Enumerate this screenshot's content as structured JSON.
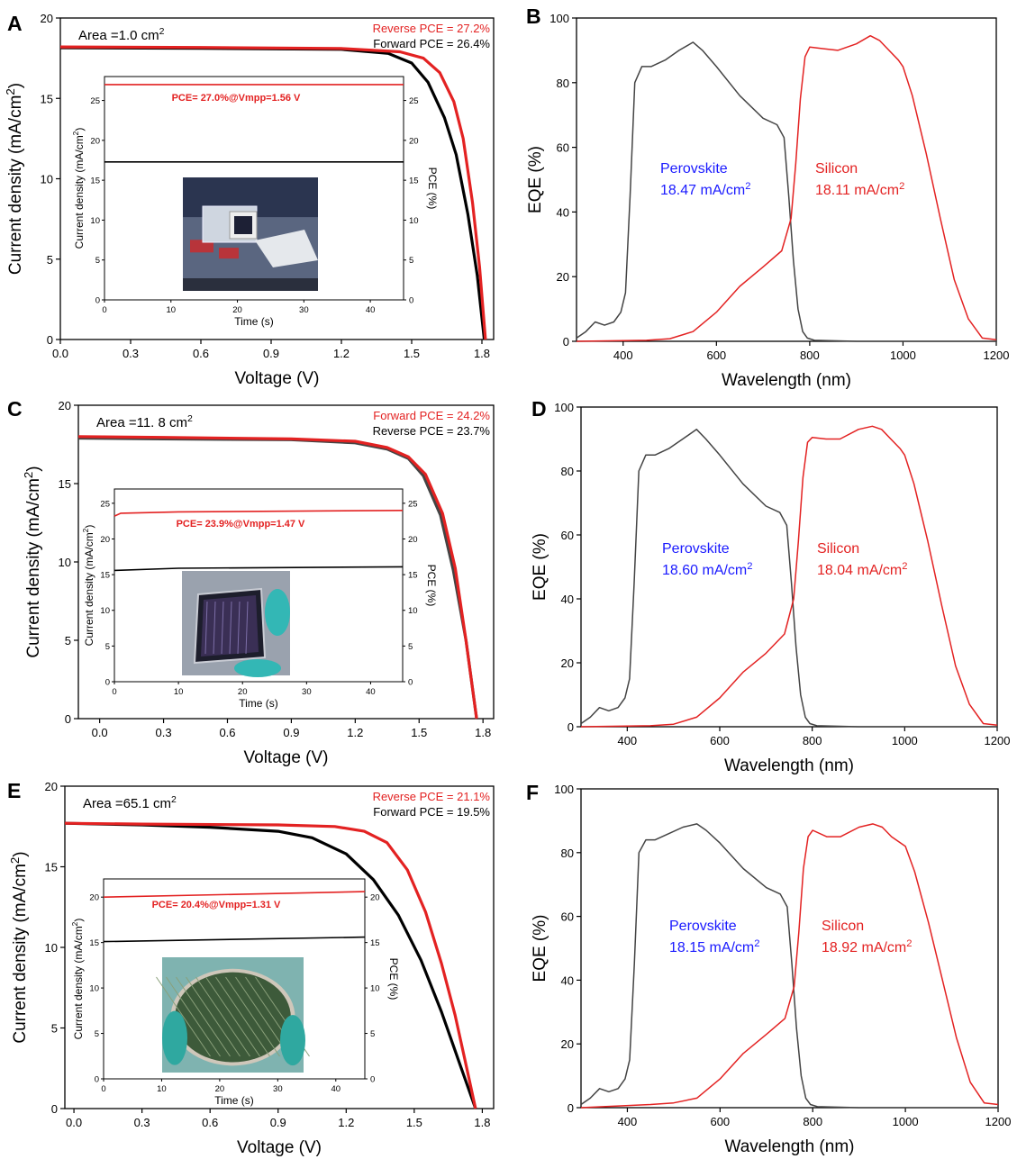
{
  "figure": {
    "colors": {
      "red": "#e32222",
      "black": "#000000",
      "gray": "#444444",
      "blue": "#1a1aff"
    }
  },
  "chart_data": [
    {
      "panel": "A",
      "type": "line",
      "xlabel": "Voltage (V)",
      "ylabel": "Current density (mA/cm2)",
      "xlim": [
        0.0,
        1.85
      ],
      "ylim": [
        0,
        20
      ],
      "xticks": [
        "0.0",
        "0.3",
        "0.6",
        "0.9",
        "1.2",
        "1.5",
        "1.8"
      ],
      "yticks": [
        "0",
        "5",
        "10",
        "15",
        "20"
      ],
      "area_label": "Area =1.0 cm",
      "area_sup": "2",
      "legend": [
        {
          "text": "Reverse PCE = 27.2%",
          "color": "#e32222"
        },
        {
          "text": "Forward PCE = 26.4%",
          "color": "#000000"
        }
      ],
      "series": [
        {
          "name": "Reverse PCE = 27.2%",
          "color": "#e32222",
          "x": [
            0.0,
            0.6,
            1.2,
            1.45,
            1.55,
            1.62,
            1.68,
            1.72,
            1.76,
            1.79,
            1.815
          ],
          "y": [
            18.2,
            18.17,
            18.1,
            17.9,
            17.5,
            16.6,
            14.8,
            12.5,
            8.5,
            4.5,
            0
          ]
        },
        {
          "name": "Forward PCE = 26.4%",
          "color": "#000000",
          "x": [
            0.0,
            0.6,
            1.2,
            1.4,
            1.5,
            1.57,
            1.64,
            1.69,
            1.74,
            1.78,
            1.81
          ],
          "y": [
            18.15,
            18.12,
            18.05,
            17.8,
            17.2,
            16.0,
            13.8,
            11.5,
            7.8,
            4.0,
            0
          ]
        }
      ],
      "inset": {
        "xlabel": "Time (s)",
        "ylabel": "Current density (mA/cm2)",
        "y2label": "PCE (%)",
        "xlim": [
          0,
          45
        ],
        "ylim": [
          0,
          28
        ],
        "xticks": [
          "0",
          "10",
          "20",
          "30",
          "40"
        ],
        "yticks": [
          "0",
          "5",
          "10",
          "15",
          "20",
          "25"
        ],
        "y2ticks": [
          "0",
          "5",
          "10",
          "15",
          "20",
          "25"
        ],
        "annotation": "PCE= 27.0%@Vmpp=1.56 V",
        "series": [
          {
            "name": "PCE",
            "color": "#e32222",
            "x": [
              0,
              45
            ],
            "y": [
              27.0,
              27.0
            ]
          },
          {
            "name": "Current density",
            "color": "#000000",
            "x": [
              0,
              45
            ],
            "y": [
              17.3,
              17.3
            ]
          }
        ]
      }
    },
    {
      "panel": "B",
      "type": "line",
      "xlabel": "Wavelength (nm)",
      "ylabel": "EQE (%)",
      "xlim": [
        300,
        1200
      ],
      "ylim": [
        0,
        100
      ],
      "xticks": [
        "400",
        "600",
        "800",
        "1000",
        "1200"
      ],
      "yticks": [
        "0",
        "20",
        "40",
        "60",
        "80",
        "100"
      ],
      "labels": [
        {
          "name": "Perovskite",
          "value": "18.47 mA/cm",
          "sup": "2",
          "color": "#1a1aff"
        },
        {
          "name": "Silicon",
          "value": "18.11 mA/cm",
          "sup": "2",
          "color": "#e32222"
        }
      ],
      "series": [
        {
          "name": "Perovskite",
          "color": "#444444",
          "x": [
            300,
            320,
            340,
            360,
            380,
            395,
            405,
            415,
            425,
            440,
            460,
            490,
            520,
            550,
            570,
            600,
            650,
            700,
            730,
            745,
            755,
            765,
            775,
            785,
            795,
            810,
            900,
            1200
          ],
          "y": [
            1,
            3,
            6,
            5,
            6,
            9,
            15,
            45,
            80,
            85,
            85,
            87,
            90,
            92.5,
            90,
            85,
            76,
            69,
            67,
            63,
            45,
            25,
            10,
            3,
            1,
            0.3,
            0,
            0
          ]
        },
        {
          "name": "Silicon",
          "color": "#e32222",
          "x": [
            300,
            450,
            500,
            550,
            600,
            650,
            700,
            740,
            760,
            770,
            780,
            790,
            800,
            830,
            860,
            900,
            930,
            950,
            970,
            990,
            1000,
            1020,
            1050,
            1080,
            1110,
            1140,
            1170,
            1200
          ],
          "y": [
            0,
            0.3,
            0.8,
            3,
            9,
            17,
            23,
            28,
            38,
            55,
            75,
            88,
            91,
            90.5,
            90,
            92,
            94.5,
            93,
            90,
            87,
            85,
            76,
            58,
            38,
            19,
            7,
            1,
            0.5
          ]
        }
      ]
    },
    {
      "panel": "C",
      "type": "line",
      "xlabel": "Voltage (V)",
      "ylabel": "Current density (mA/cm2)",
      "xlim": [
        -0.1,
        1.85
      ],
      "ylim": [
        0,
        20
      ],
      "xticks": [
        "0.0",
        "0.3",
        "0.6",
        "0.9",
        "1.2",
        "1.5",
        "1.8"
      ],
      "yticks": [
        "0",
        "5",
        "10",
        "15",
        "20"
      ],
      "area_label": "Area =11. 8 cm",
      "area_sup": "2",
      "legend": [
        {
          "text": "Forward PCE = 24.2%",
          "color": "#e32222"
        },
        {
          "text": "Reverse PCE = 23.7%",
          "color": "#000000"
        }
      ],
      "series": [
        {
          "name": "Reverse PCE = 23.7%",
          "color": "#444444",
          "x": [
            -0.1,
            0.3,
            0.9,
            1.2,
            1.35,
            1.45,
            1.52,
            1.6,
            1.66,
            1.72,
            1.77
          ],
          "y": [
            17.9,
            17.85,
            17.8,
            17.6,
            17.2,
            16.6,
            15.5,
            13.0,
            9.5,
            5.0,
            0
          ]
        },
        {
          "name": "Forward PCE = 24.2%",
          "color": "#e32222",
          "x": [
            -0.1,
            0.3,
            0.9,
            1.2,
            1.35,
            1.45,
            1.53,
            1.61,
            1.67,
            1.72,
            1.77
          ],
          "y": [
            18.0,
            17.95,
            17.85,
            17.7,
            17.3,
            16.7,
            15.6,
            13.1,
            9.6,
            5.0,
            0
          ]
        }
      ],
      "inset": {
        "xlabel": "Time (s)",
        "ylabel": "Current density (mA/cm2)",
        "y2label": "PCE (%)",
        "xlim": [
          0,
          45
        ],
        "ylim": [
          0,
          27
        ],
        "xticks": [
          "0",
          "10",
          "20",
          "30",
          "40"
        ],
        "yticks": [
          "0",
          "5",
          "10",
          "15",
          "20",
          "25"
        ],
        "y2ticks": [
          "0",
          "5",
          "10",
          "15",
          "20",
          "25"
        ],
        "annotation": "PCE= 23.9%@Vmpp=1.47 V",
        "series": [
          {
            "name": "PCE",
            "color": "#e32222",
            "x": [
              0,
              1,
              10,
              45
            ],
            "y": [
              23.2,
              23.6,
              23.8,
              24.0
            ]
          },
          {
            "name": "Current density",
            "color": "#000000",
            "x": [
              0,
              10,
              45
            ],
            "y": [
              15.6,
              15.9,
              16.1
            ]
          }
        ]
      }
    },
    {
      "panel": "D",
      "type": "line",
      "xlabel": "Wavelength (nm)",
      "ylabel": "EQE (%)",
      "xlim": [
        300,
        1200
      ],
      "ylim": [
        0,
        100
      ],
      "xticks": [
        "400",
        "600",
        "800",
        "1000",
        "1200"
      ],
      "yticks": [
        "0",
        "20",
        "40",
        "60",
        "80",
        "100"
      ],
      "labels": [
        {
          "name": "Perovskite",
          "value": "18.60 mA/cm",
          "sup": "2",
          "color": "#1a1aff"
        },
        {
          "name": "Silicon",
          "value": "18.04 mA/cm",
          "sup": "2",
          "color": "#e32222"
        }
      ],
      "series": [
        {
          "name": "Perovskite",
          "color": "#444444",
          "x": [
            300,
            320,
            340,
            360,
            380,
            395,
            405,
            415,
            425,
            440,
            460,
            490,
            520,
            550,
            570,
            600,
            650,
            700,
            730,
            745,
            755,
            765,
            775,
            785,
            795,
            810,
            900,
            1200
          ],
          "y": [
            1,
            3,
            6,
            5,
            6,
            9,
            15,
            45,
            80,
            85,
            85,
            87,
            90,
            93,
            90,
            85,
            76,
            69,
            67,
            63,
            45,
            25,
            10,
            3,
            1,
            0.3,
            0,
            0
          ]
        },
        {
          "name": "Silicon",
          "color": "#e32222",
          "x": [
            300,
            450,
            500,
            550,
            600,
            650,
            700,
            740,
            760,
            770,
            780,
            790,
            800,
            830,
            860,
            900,
            930,
            950,
            970,
            990,
            1000,
            1020,
            1050,
            1080,
            1110,
            1140,
            1170,
            1200
          ],
          "y": [
            0,
            0.3,
            0.8,
            3,
            9,
            17,
            23,
            29,
            40,
            58,
            78,
            89,
            90.5,
            90,
            90,
            93,
            94,
            93,
            90,
            87,
            85,
            76,
            58,
            38,
            19,
            7,
            1,
            0.5
          ]
        }
      ]
    },
    {
      "panel": "E",
      "type": "line",
      "xlabel": "Voltage (V)",
      "ylabel": "Current density (mA/cm2)",
      "xlim": [
        -0.04,
        1.85
      ],
      "ylim": [
        0,
        20
      ],
      "xticks": [
        "0.0",
        "0.3",
        "0.6",
        "0.9",
        "1.2",
        "1.5",
        "1.8"
      ],
      "yticks": [
        "0",
        "5",
        "10",
        "15",
        "20"
      ],
      "area_label": "Area =65.1 cm",
      "area_sup": "2",
      "legend": [
        {
          "text": "Reverse PCE = 21.1%",
          "color": "#e32222"
        },
        {
          "text": "Forward PCE = 19.5%",
          "color": "#000000"
        }
      ],
      "series": [
        {
          "name": "Reverse PCE = 21.1%",
          "color": "#e32222",
          "x": [
            -0.04,
            0.3,
            0.9,
            1.15,
            1.28,
            1.38,
            1.47,
            1.55,
            1.62,
            1.68,
            1.73,
            1.77
          ],
          "y": [
            17.7,
            17.65,
            17.6,
            17.5,
            17.2,
            16.5,
            14.8,
            12.2,
            9.0,
            5.8,
            2.6,
            0
          ]
        },
        {
          "name": "Forward PCE = 19.5%",
          "color": "#000000",
          "x": [
            -0.04,
            0.3,
            0.6,
            0.9,
            1.05,
            1.2,
            1.32,
            1.43,
            1.53,
            1.62,
            1.7,
            1.77
          ],
          "y": [
            17.7,
            17.6,
            17.45,
            17.2,
            16.8,
            15.8,
            14.2,
            12.0,
            9.2,
            6.0,
            2.8,
            0
          ]
        }
      ],
      "inset": {
        "xlabel": "Time (s)",
        "ylabel": "Current density (mA/cm2)",
        "y2label": "PCE (%)",
        "xlim": [
          0,
          45
        ],
        "ylim": [
          0,
          22
        ],
        "xticks": [
          "0",
          "10",
          "20",
          "30",
          "40"
        ],
        "yticks": [
          "0",
          "5",
          "10",
          "15",
          "20"
        ],
        "y2ticks": [
          "0",
          "5",
          "10",
          "15",
          "20"
        ],
        "annotation": "PCE= 20.4%@Vmpp=1.31 V",
        "series": [
          {
            "name": "PCE",
            "color": "#e32222",
            "x": [
              0,
              45
            ],
            "y": [
              20.0,
              20.6
            ]
          },
          {
            "name": "Current density",
            "color": "#000000",
            "x": [
              0,
              45
            ],
            "y": [
              15.1,
              15.6
            ]
          }
        ]
      }
    },
    {
      "panel": "F",
      "type": "line",
      "xlabel": "Wavelength (nm)",
      "ylabel": "EQE (%)",
      "xlim": [
        300,
        1200
      ],
      "ylim": [
        0,
        100
      ],
      "xticks": [
        "400",
        "600",
        "800",
        "1000",
        "1200"
      ],
      "yticks": [
        "0",
        "20",
        "40",
        "60",
        "80",
        "100"
      ],
      "labels": [
        {
          "name": "Perovskite",
          "value": "18.15 mA/cm",
          "sup": "2",
          "color": "#1a1aff"
        },
        {
          "name": "Silicon",
          "value": "18.92 mA/cm",
          "sup": "2",
          "color": "#e32222"
        }
      ],
      "series": [
        {
          "name": "Perovskite",
          "color": "#444444",
          "x": [
            300,
            320,
            340,
            360,
            380,
            395,
            405,
            415,
            425,
            440,
            460,
            490,
            520,
            550,
            570,
            600,
            650,
            700,
            730,
            745,
            755,
            765,
            775,
            785,
            795,
            810,
            900,
            1200
          ],
          "y": [
            1,
            3,
            6,
            5,
            6,
            9,
            15,
            45,
            80,
            84,
            84,
            86,
            88,
            89,
            87,
            83,
            75,
            69,
            67,
            63,
            45,
            25,
            10,
            3,
            1,
            0.3,
            0,
            0
          ]
        },
        {
          "name": "Silicon",
          "color": "#e32222",
          "x": [
            300,
            450,
            500,
            550,
            600,
            650,
            700,
            740,
            760,
            770,
            780,
            790,
            800,
            830,
            860,
            900,
            930,
            950,
            970,
            990,
            1000,
            1020,
            1050,
            1080,
            1110,
            1140,
            1170,
            1200
          ],
          "y": [
            0,
            1,
            1.5,
            3,
            9,
            17,
            23,
            28,
            38,
            55,
            75,
            85,
            87,
            85,
            85,
            88,
            89,
            88,
            85,
            83,
            82,
            74,
            58,
            40,
            22,
            8,
            1.5,
            1
          ]
        }
      ]
    }
  ]
}
